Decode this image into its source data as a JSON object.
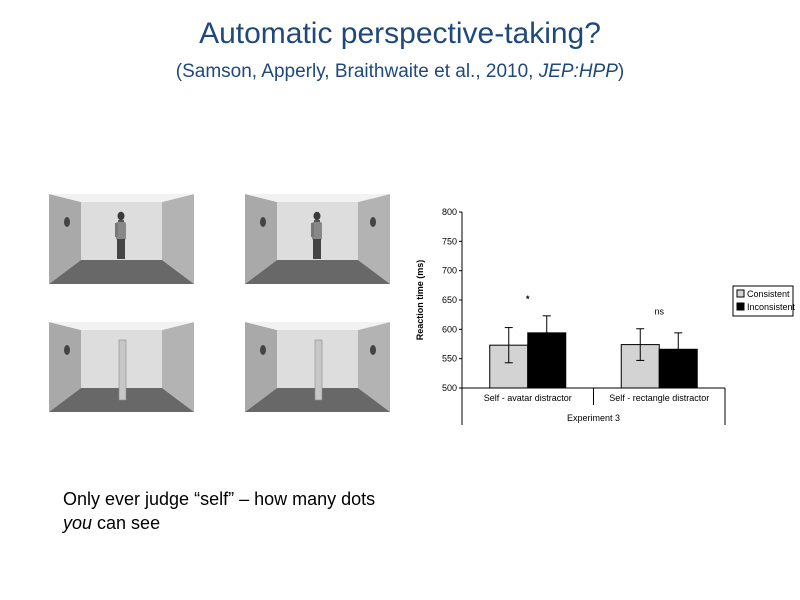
{
  "slide": {
    "title": "Automatic perspective-taking?",
    "citation": {
      "prefix": "(Samson, Apperly, Braithwaite et al., 2010, ",
      "journal": "JEP:HPP",
      "suffix": ")"
    },
    "caption": {
      "line1": "Only ever judge “self” – how many dots",
      "line2_emph": "you",
      "line2_rest": " can see"
    }
  },
  "rooms": [
    {
      "distractor": "avatar",
      "dots_left_wall": 1,
      "dots_right_wall": 0
    },
    {
      "distractor": "avatar",
      "dots_left_wall": 1,
      "dots_right_wall": 1
    },
    {
      "distractor": "rectangle",
      "dots_left_wall": 1,
      "dots_right_wall": 0
    },
    {
      "distractor": "rectangle",
      "dots_left_wall": 1,
      "dots_right_wall": 1
    }
  ],
  "chart_data": {
    "type": "bar",
    "ylabel": "Reaction time (ms)",
    "xlabel": "Experiment 3",
    "ylim": [
      500,
      800
    ],
    "yticks": [
      500,
      550,
      600,
      650,
      700,
      750,
      800
    ],
    "categories": [
      "Self - avatar distractor",
      "Self - rectangle distractor"
    ],
    "series": [
      {
        "name": "Consistent",
        "color": "#d3d3d3",
        "values": [
          573,
          574
        ],
        "errors": [
          30,
          27
        ]
      },
      {
        "name": "Inconsistent",
        "color": "#000000",
        "values": [
          594,
          566
        ],
        "errors": [
          29,
          28
        ]
      }
    ],
    "annotations": [
      "*",
      "ns"
    ],
    "legend_position": "right"
  }
}
